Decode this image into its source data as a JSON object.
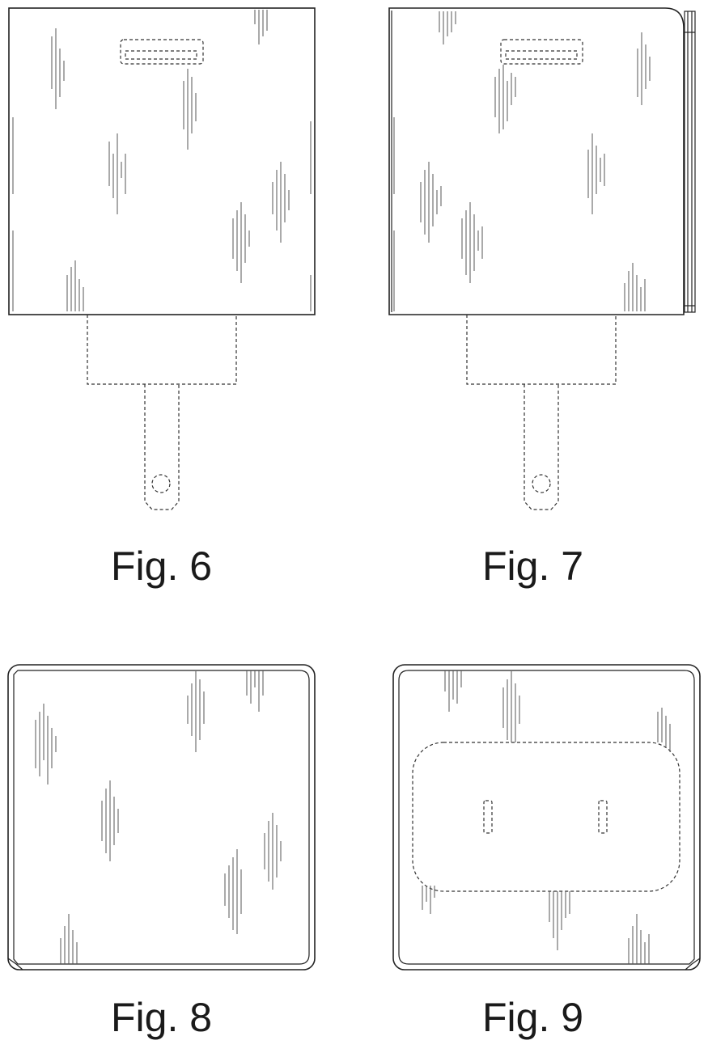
{
  "figures": [
    {
      "id": "fig6",
      "label": "Fig. 6",
      "view": "front-with-plug"
    },
    {
      "id": "fig7",
      "label": "Fig. 7",
      "view": "side-with-plug"
    },
    {
      "id": "fig8",
      "label": "Fig. 8",
      "view": "top"
    },
    {
      "id": "fig9",
      "label": "Fig. 9",
      "view": "bottom-with-outlet"
    }
  ],
  "colors": {
    "line": "#222222",
    "background": "#ffffff",
    "shade": "#555555"
  }
}
